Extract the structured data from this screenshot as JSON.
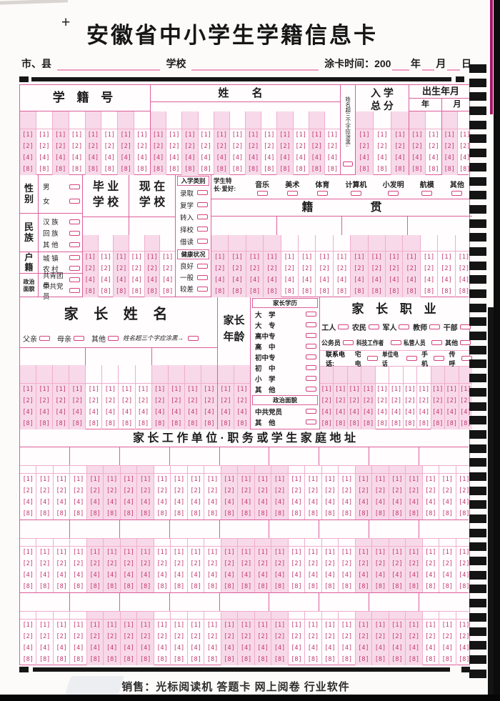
{
  "page": {
    "plus_mark": "+",
    "title": "安徽省中小学生学籍信息卡",
    "footer": "销售：光标阅读机 答题卡 网上阅卷 行业软件"
  },
  "info_row": {
    "city_label": "市、县",
    "school_label": "学校",
    "time_label": "涂卡时间：200",
    "year": "年",
    "month": "月",
    "day": "日"
  },
  "top": {
    "sid_title": "学  籍  号",
    "name_title": "姓      名",
    "overflow_note": "姓名超三个字应涂黑↓",
    "score_line1": "入 学",
    "score_line2": "总 分",
    "birth_title": "出生年月",
    "birth_year": "年",
    "birth_month": "月"
  },
  "left": {
    "gender": {
      "label": "性别",
      "options": [
        "男",
        "女"
      ]
    },
    "ethnicity": {
      "label": "民族",
      "options": [
        "汉 族",
        "回 族",
        "其 他"
      ]
    },
    "residence": {
      "label": "户籍",
      "options": [
        "城 镇",
        "农 村"
      ]
    },
    "politics": {
      "label": "政治面貌",
      "options": [
        "共青团员",
        "中共党员"
      ]
    }
  },
  "schools": {
    "graduate_line1": "毕 业",
    "graduate_line2": "学 校",
    "current_line1": "现 在",
    "current_line2": "学 校"
  },
  "enroll": {
    "label": "入学类别",
    "options": [
      "录取",
      "复学",
      "转入",
      "择校",
      "借读"
    ]
  },
  "health": {
    "label": "健康状况",
    "options": [
      "良好",
      "一般",
      "较差"
    ]
  },
  "hobby": {
    "label_line1": "学生特",
    "label_line2": "长·爱好:",
    "options": [
      "音乐",
      "美术",
      "体育",
      "计算机",
      "小发明",
      "航模",
      "其他"
    ]
  },
  "jiguan": {
    "label": "籍　　　　　贯"
  },
  "parent_name": {
    "title": "家 长 姓 名",
    "relations": [
      "父亲",
      "母亲",
      "其他"
    ],
    "overflow_note": "姓名超三个字应涂黑→"
  },
  "parent_age": {
    "label_line1": "家长",
    "label_line2": "年龄"
  },
  "parent_edu": {
    "label": "家长学历",
    "options": [
      "大　学",
      "大　专",
      "高中专",
      "高　中",
      "初中专",
      "初　中",
      "小　学",
      "其　他"
    ],
    "politics_label": "政治面貌",
    "politics_options": [
      "中共党员",
      "其　他"
    ]
  },
  "parent_job": {
    "title": "家 长 职 业",
    "row1": [
      "工人",
      "农民",
      "军人",
      "教师",
      "干部"
    ],
    "row2": [
      "公务员",
      "科技工作者",
      "私营人员",
      "其他"
    ],
    "phone_label": "联系电话:",
    "phone_options": [
      "宅电",
      "单位电话",
      "手机",
      "传呼"
    ]
  },
  "address": {
    "title": "家 长 工 作 单 位 · 职 务 或 学 生 家 庭 地 址"
  },
  "bubbles": {
    "digits": [
      "1",
      "2",
      "4",
      "8"
    ]
  },
  "grids": {
    "sid": {
      "cols": 8,
      "shade": "alt"
    },
    "name": {
      "cols": 12,
      "shade": "alt"
    },
    "score": {
      "cols": 3,
      "shade": "alt"
    },
    "birth_year": {
      "cols": 2,
      "shade": "alt"
    },
    "birth_month": {
      "cols": 2,
      "shade": "alt"
    },
    "school": {
      "cols": 6,
      "shade": "alt"
    },
    "jiguan": {
      "cols": 15,
      "shade": "g4s"
    },
    "parent_name": {
      "cols": 12,
      "shade": "g4s"
    },
    "parent_age": {
      "cols": 2,
      "shade": "all"
    },
    "phone": {
      "cols": 11,
      "shade": "g4s"
    },
    "address": {
      "cols": 27,
      "shade": "g4"
    }
  },
  "address_blocks": {
    "count": 3,
    "write_cells": 9
  },
  "timing_marks": {
    "count": 44
  }
}
